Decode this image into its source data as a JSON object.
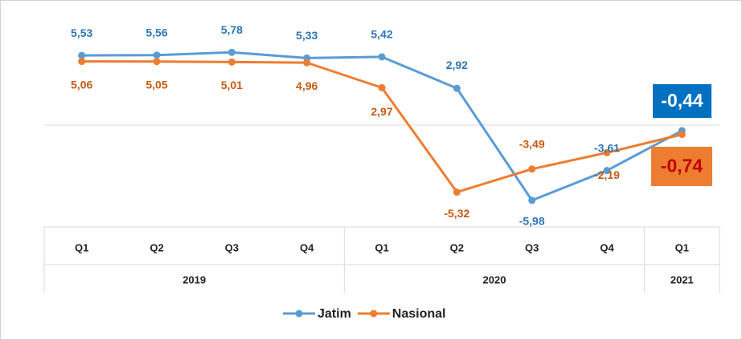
{
  "chart_data": {
    "type": "line",
    "categories": [
      "Q1",
      "Q2",
      "Q3",
      "Q4",
      "Q1",
      "Q2",
      "Q3",
      "Q4",
      "Q1"
    ],
    "category_groups": [
      {
        "label": "2019",
        "count": 4
      },
      {
        "label": "2020",
        "count": 4
      },
      {
        "label": "2021",
        "count": 1
      }
    ],
    "series": [
      {
        "name": "Jatim",
        "color": "#5b9bd5",
        "label_color": "#2e75b6",
        "highlight_color": "#0070c0",
        "highlight_text_color": "#ffffff",
        "values": [
          5.53,
          5.56,
          5.78,
          5.33,
          5.42,
          2.92,
          -5.98,
          -3.61,
          -0.44
        ],
        "value_labels": [
          "5,53",
          "5,56",
          "5,78",
          "5,33",
          "5,42",
          "2,92",
          "-5,98",
          "-3,61",
          "-0,44"
        ]
      },
      {
        "name": "Nasional",
        "color": "#ed7d31",
        "label_color": "#c55a11",
        "highlight_color": "#ed7d31",
        "highlight_text_color": "#c00000",
        "values": [
          5.06,
          5.05,
          5.01,
          4.96,
          2.97,
          -5.32,
          -3.49,
          -2.19,
          -0.74
        ],
        "value_labels": [
          "5,06",
          "5,05",
          "5,01",
          "4,96",
          "2,97",
          "-5,32",
          "-3,49",
          "-2,19",
          "-0,74"
        ]
      }
    ],
    "ylim": [
      -8,
      9.3
    ],
    "legend": "bottom"
  }
}
